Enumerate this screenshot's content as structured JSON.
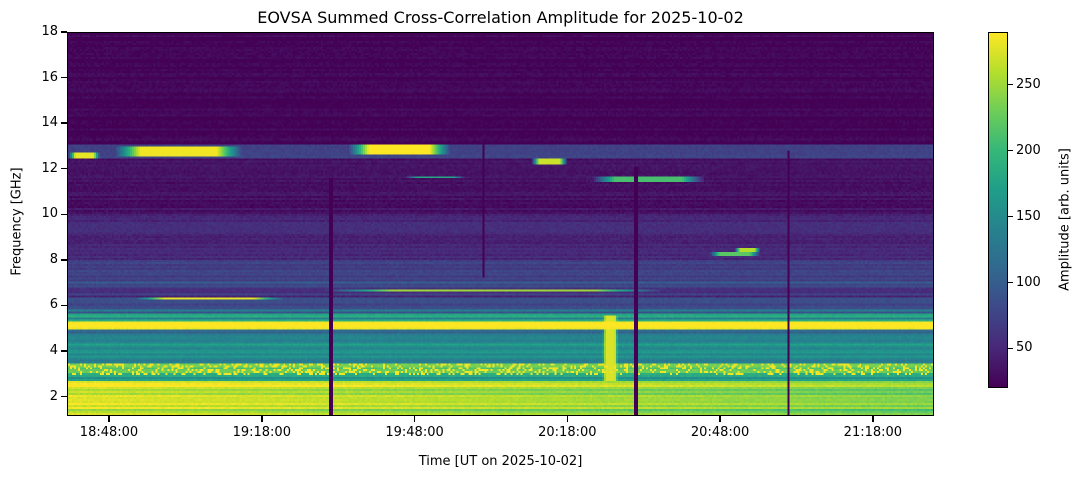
{
  "chart_data": {
    "type": "heatmap",
    "title": "EOVSA Summed Cross-Correlation Amplitude for 2025-10-02",
    "xlabel": "Time [UT on 2025-10-02]",
    "ylabel": "Frequency [GHz]",
    "x_units": "minutes after 18:00 UT",
    "xlim": [
      39.75,
      210
    ],
    "ylim": [
      1.15,
      18
    ],
    "xticks": [
      48,
      78,
      108,
      138,
      168,
      198
    ],
    "xtick_labels": [
      "18:48:00",
      "19:18:00",
      "19:48:00",
      "20:18:00",
      "20:48:00",
      "21:18:00"
    ],
    "yticks": [
      2,
      4,
      6,
      8,
      10,
      12,
      14,
      16,
      18
    ],
    "ytick_labels": [
      "2",
      "4",
      "6",
      "8",
      "10",
      "12",
      "14",
      "16",
      "18"
    ],
    "colorbar": {
      "label": "Amplitude [arb. units]",
      "colormap": "viridis",
      "range": [
        20,
        290
      ],
      "ticks": [
        50,
        100,
        150,
        200,
        250
      ],
      "tick_labels": [
        "50",
        "100",
        "150",
        "200",
        "250"
      ]
    },
    "frequency_profile": [
      {
        "f": [
          1.15,
          2.6
        ],
        "amp": 275,
        "end_amp": 235
      },
      {
        "f": [
          2.6,
          2.9
        ],
        "amp": 175
      },
      {
        "f": [
          2.9,
          3.4
        ],
        "amp": 205,
        "bursty": true
      },
      {
        "f": [
          3.4,
          4.6
        ],
        "amp": 150
      },
      {
        "f": [
          4.6,
          4.9
        ],
        "amp": 120
      },
      {
        "f": [
          4.9,
          5.3
        ],
        "amp": 268
      },
      {
        "f": [
          5.3,
          5.6
        ],
        "amp": 165
      },
      {
        "f": [
          5.6,
          6.0
        ],
        "amp": 110
      },
      {
        "f": [
          6.0,
          8.0
        ],
        "amp": 72
      },
      {
        "f": [
          8.0,
          10.0
        ],
        "amp": 50
      },
      {
        "f": [
          10.0,
          12.5
        ],
        "amp": 32
      },
      {
        "f": [
          12.5,
          13.1
        ],
        "amp": 75
      },
      {
        "f": [
          13.1,
          18.0
        ],
        "amp": 22
      }
    ],
    "features": [
      {
        "t": [
          49,
          74
        ],
        "f": [
          12.6,
          13.0
        ],
        "amp": 285
      },
      {
        "t": [
          40,
          46
        ],
        "f": [
          12.45,
          12.7
        ],
        "amp": 280
      },
      {
        "t": [
          95,
          115
        ],
        "f": [
          12.65,
          13.05
        ],
        "amp": 290
      },
      {
        "t": [
          131,
          138
        ],
        "f": [
          12.2,
          12.45
        ],
        "amp": 270
      },
      {
        "t": [
          143,
          165
        ],
        "f": [
          11.45,
          11.65
        ],
        "amp": 210
      },
      {
        "t": [
          106,
          118
        ],
        "f": [
          11.55,
          11.7
        ],
        "amp": 180
      },
      {
        "t": [
          166,
          176
        ],
        "f": [
          8.15,
          8.35
        ],
        "amp": 220
      },
      {
        "t": [
          171,
          176
        ],
        "f": [
          8.35,
          8.5
        ],
        "amp": 260
      },
      {
        "t": [
          53,
          82
        ],
        "f": [
          6.2,
          6.35
        ],
        "amp": 280
      },
      {
        "t": [
          90,
          157
        ],
        "f": [
          6.6,
          6.72
        ],
        "amp": 250
      },
      {
        "t": [
          145,
          148
        ],
        "f": [
          2.6,
          5.5
        ],
        "amp": 275
      }
    ],
    "gaps": [
      {
        "t": 91.5,
        "f": [
          1.15,
          11.6
        ]
      },
      {
        "t": 151.5,
        "f": [
          1.15,
          12.1
        ]
      },
      {
        "t": 181.5,
        "f": [
          1.15,
          12.8
        ]
      },
      {
        "t": 121.5,
        "f": [
          7.2,
          13.2
        ]
      }
    ]
  }
}
